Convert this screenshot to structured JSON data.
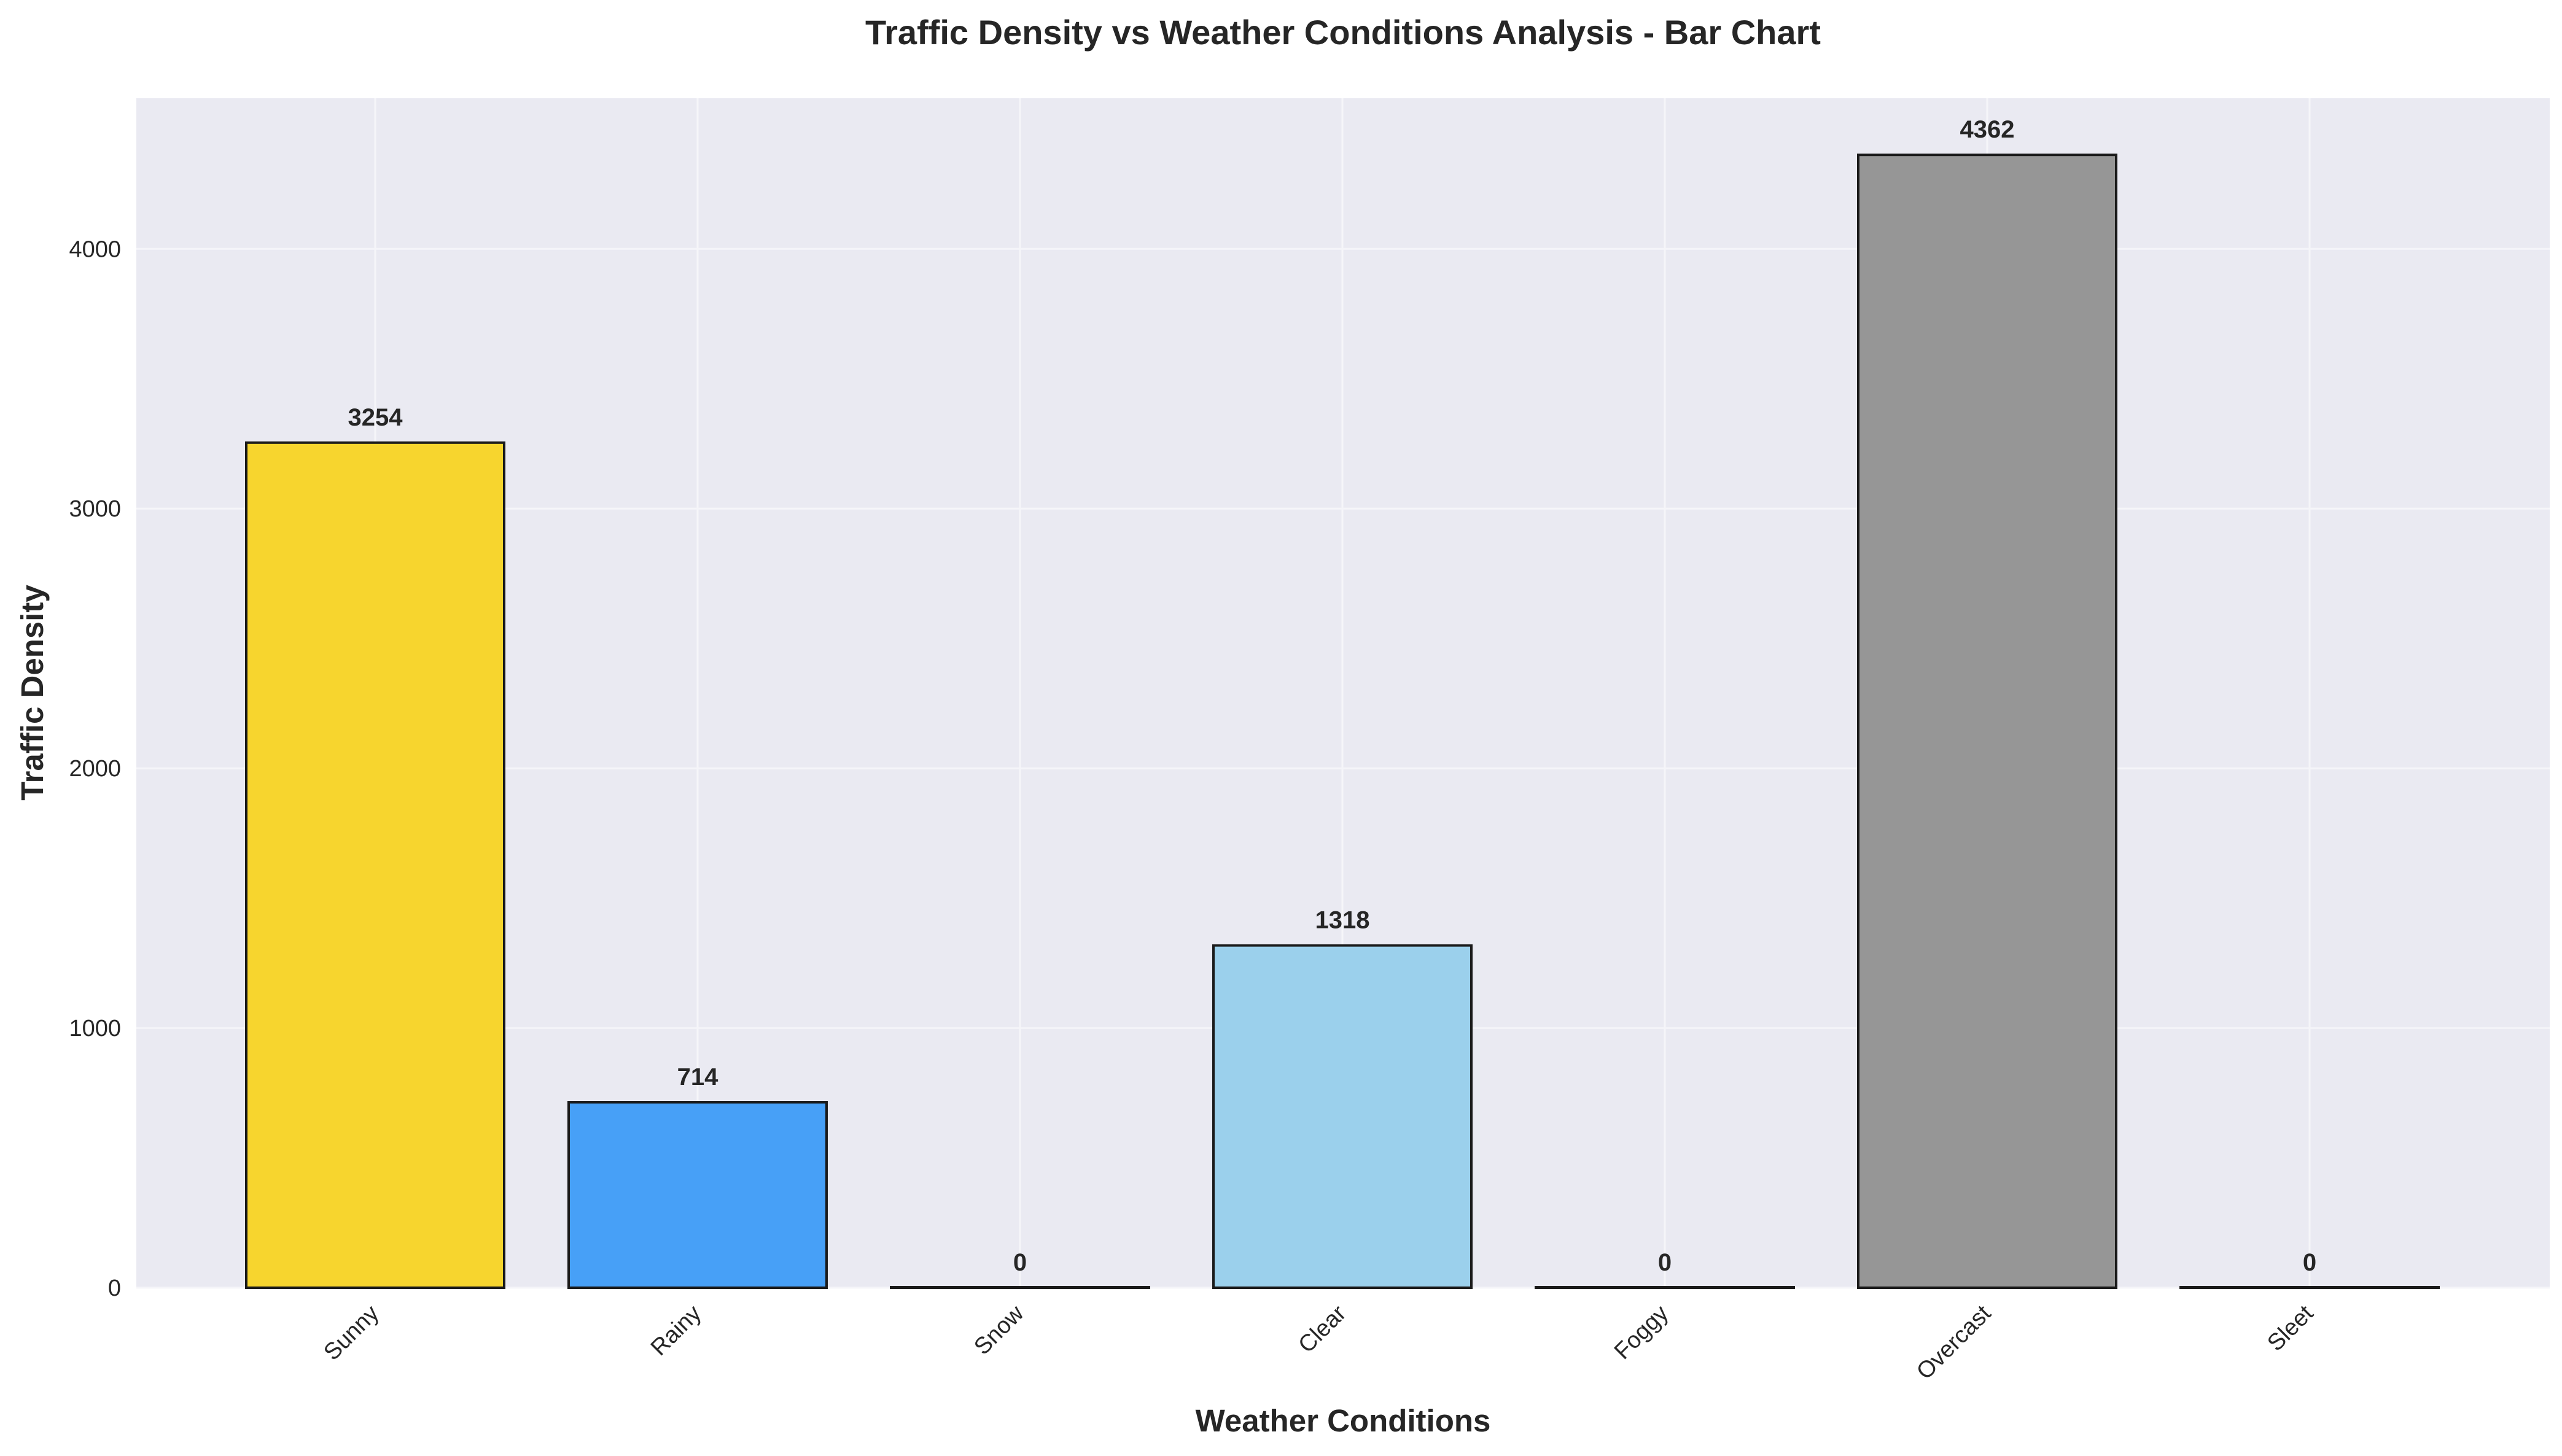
{
  "chart_data": {
    "type": "bar",
    "title": "Traffic Density vs Weather Conditions Analysis - Bar Chart",
    "xlabel": "Weather Conditions",
    "ylabel": "Traffic Density",
    "categories": [
      "Sunny",
      "Rainy",
      "Snow",
      "Clear",
      "Foggy",
      "Overcast",
      "Sleet"
    ],
    "values": [
      3254,
      714,
      0,
      1318,
      0,
      4362,
      0
    ],
    "data_labels": [
      "3254",
      "714",
      "0",
      "1318",
      "0",
      "4362",
      "0"
    ],
    "bar_colors": [
      "#F7D52E",
      "#47A0F7",
      "#808080",
      "#9BD0EC",
      "#808080",
      "#969696",
      "#808080"
    ],
    "ylim": [
      0,
      4580
    ],
    "yticks": [
      0,
      1000,
      2000,
      3000,
      4000
    ],
    "ytick_labels": [
      "0",
      "1000",
      "2000",
      "3000",
      "4000"
    ],
    "grid": true,
    "legend": false,
    "colors": {
      "plot_background": "#EAEAF2",
      "grid": "#F5F5F9",
      "bar_edge": "#1a1a1a"
    }
  }
}
